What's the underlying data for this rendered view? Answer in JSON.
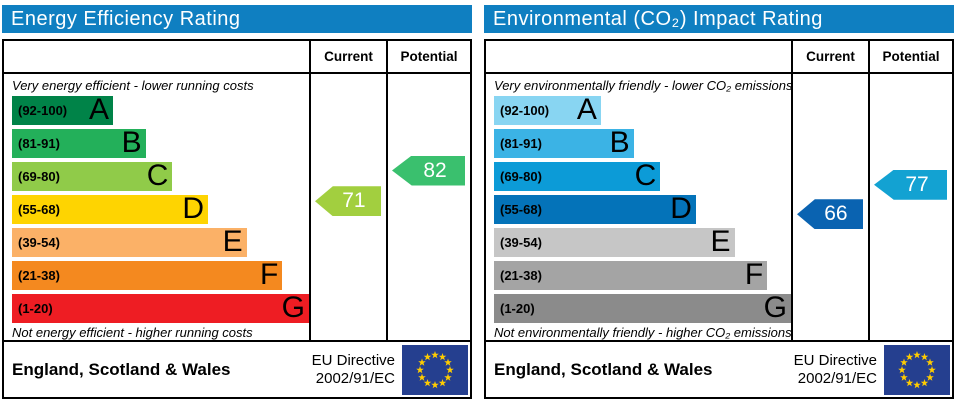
{
  "columns": {
    "current": "Current",
    "potential": "Potential"
  },
  "footer": {
    "region": "England, Scotland & Wales",
    "directive_line1": "EU Directive",
    "directive_line2": "2002/91/EC",
    "eu_flag": {
      "background": "#253f8f",
      "stars": "#ffcc00"
    }
  },
  "header_bg": "#0f7fc1",
  "chart_data": [
    {
      "type": "bar",
      "subtype": "epc_rating",
      "title": "Energy Efficiency Rating",
      "top_note": "Very energy efficient - lower running costs",
      "bottom_note": "Not energy efficient - higher running costs",
      "value_range": [
        1,
        100
      ],
      "bands": [
        {
          "label": "(92-100)",
          "letter": "A",
          "min": 92,
          "max": 100,
          "color": "#008348",
          "width_pct": 34
        },
        {
          "label": "(81-91)",
          "letter": "B",
          "min": 81,
          "max": 91,
          "color": "#23b05a",
          "width_pct": 45
        },
        {
          "label": "(69-80)",
          "letter": "C",
          "min": 69,
          "max": 80,
          "color": "#90cb49",
          "width_pct": 54
        },
        {
          "label": "(55-68)",
          "letter": "D",
          "min": 55,
          "max": 68,
          "color": "#fed401",
          "width_pct": 66
        },
        {
          "label": "(39-54)",
          "letter": "E",
          "min": 39,
          "max": 54,
          "color": "#fbb167",
          "width_pct": 79
        },
        {
          "label": "(21-38)",
          "letter": "F",
          "min": 21,
          "max": 38,
          "color": "#f4891f",
          "width_pct": 91
        },
        {
          "label": "(1-20)",
          "letter": "G",
          "min": 1,
          "max": 20,
          "color": "#ee1d23",
          "width_pct": 100
        }
      ],
      "current": {
        "value": 71,
        "color": "#a2cf3f"
      },
      "potential": {
        "value": 82,
        "color": "#3ac06e"
      }
    },
    {
      "type": "bar",
      "subtype": "epc_rating",
      "title": "Environmental (CO₂) Impact Rating",
      "top_note": "Very environmentally friendly - lower CO₂ emissions",
      "bottom_note": "Not environmentally friendly - higher CO₂ emissions",
      "value_range": [
        1,
        100
      ],
      "bands": [
        {
          "label": "(92-100)",
          "letter": "A",
          "min": 92,
          "max": 100,
          "color": "#88d5f2",
          "width_pct": 36
        },
        {
          "label": "(81-91)",
          "letter": "B",
          "min": 81,
          "max": 91,
          "color": "#3bb3e5",
          "width_pct": 47
        },
        {
          "label": "(69-80)",
          "letter": "C",
          "min": 69,
          "max": 80,
          "color": "#0c9bd7",
          "width_pct": 56
        },
        {
          "label": "(55-68)",
          "letter": "D",
          "min": 55,
          "max": 68,
          "color": "#0473b9",
          "width_pct": 68
        },
        {
          "label": "(39-54)",
          "letter": "E",
          "min": 39,
          "max": 54,
          "color": "#c6c6c6",
          "width_pct": 81
        },
        {
          "label": "(21-38)",
          "letter": "F",
          "min": 21,
          "max": 38,
          "color": "#a4a4a4",
          "width_pct": 92
        },
        {
          "label": "(1-20)",
          "letter": "G",
          "min": 1,
          "max": 20,
          "color": "#8b8b8b",
          "width_pct": 100
        }
      ],
      "current": {
        "value": 66,
        "color": "#0a63b1"
      },
      "potential": {
        "value": 77,
        "color": "#13a2d2"
      }
    }
  ]
}
